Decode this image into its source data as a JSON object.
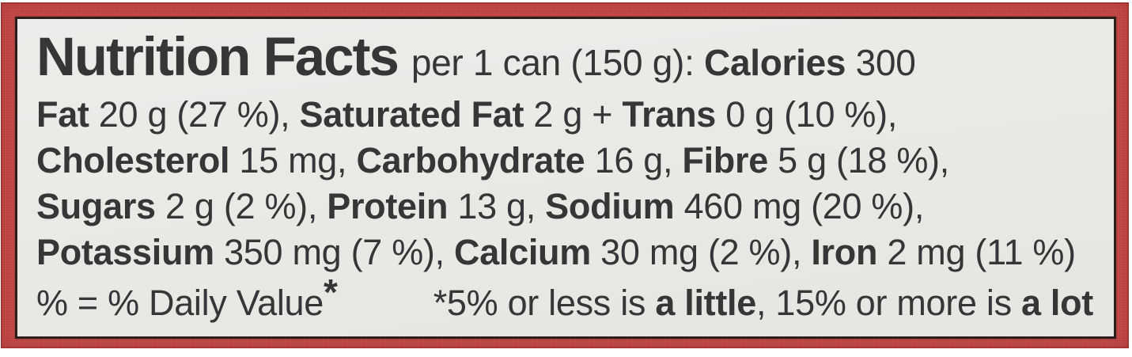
{
  "label": {
    "title": "Nutrition Facts",
    "line1_rest": [
      {
        "t": "per 1 can (150 g): "
      },
      {
        "t": "Calories",
        "b": true
      },
      {
        "t": " 300"
      }
    ],
    "lines": [
      [
        {
          "t": "Fat",
          "b": true
        },
        {
          "t": " 20 g (27 %), "
        },
        {
          "t": "Saturated Fat",
          "b": true
        },
        {
          "t": " 2 g + "
        },
        {
          "t": "Trans",
          "b": true
        },
        {
          "t": " 0 g (10 %),"
        }
      ],
      [
        {
          "t": "Cholesterol",
          "b": true
        },
        {
          "t": " 15 mg, "
        },
        {
          "t": "Carbohydrate",
          "b": true
        },
        {
          "t": " 16 g, "
        },
        {
          "t": "Fibre",
          "b": true
        },
        {
          "t": " 5 g (18 %),"
        }
      ],
      [
        {
          "t": "Sugars",
          "b": true
        },
        {
          "t": " 2 g (2 %), "
        },
        {
          "t": "Protein",
          "b": true
        },
        {
          "t": " 13 g, "
        },
        {
          "t": "Sodium",
          "b": true
        },
        {
          "t": " 460 mg (20 %),"
        }
      ],
      [
        {
          "t": "Potassium",
          "b": true
        },
        {
          "t": " 350 mg (7 %), "
        },
        {
          "t": "Calcium",
          "b": true
        },
        {
          "t": " 30 mg (2 %), "
        },
        {
          "t": "Iron",
          "b": true
        },
        {
          "t": " 2 mg (11 %)"
        }
      ]
    ],
    "footnote_left": [
      {
        "t": "% = % Daily Value"
      },
      {
        "t": "*",
        "sup": true
      }
    ],
    "footnote_right": [
      {
        "t": "*5% or less is "
      },
      {
        "t": "a little",
        "b": true
      },
      {
        "t": ", 15% or more is "
      },
      {
        "t": "a lot",
        "b": true
      }
    ]
  },
  "colors": {
    "border_red": "#c8504e",
    "panel_outline": "#2d1e1c",
    "panel_bg": "#ebeae6",
    "text_ink": "#363636",
    "page_bg": "#ffffff"
  }
}
